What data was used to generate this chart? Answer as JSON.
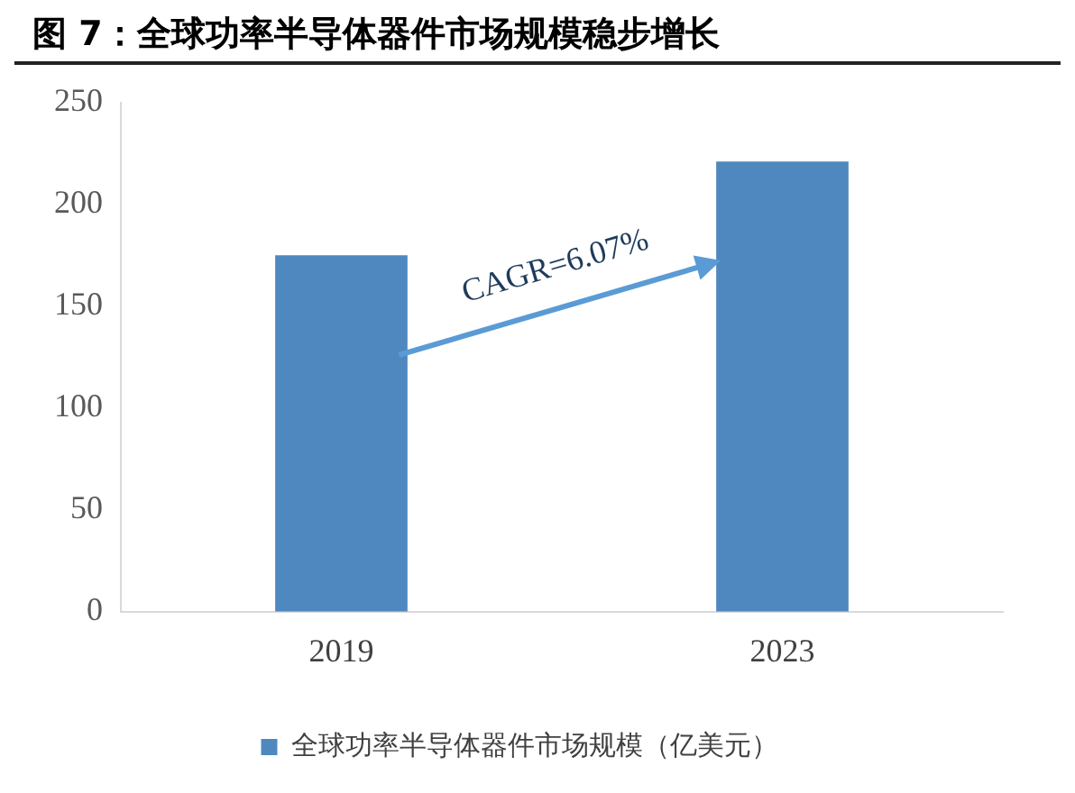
{
  "chart_data": {
    "type": "bar",
    "title": "图 7：全球功率半导体器件市场规模稳步增长",
    "categories": [
      "2019",
      "2023"
    ],
    "series": [
      {
        "name": "全球功率半导体器件市场规模（亿美元）",
        "color": "#4f88bf",
        "values": [
          175,
          221
        ]
      }
    ],
    "ylim": [
      0,
      250
    ],
    "yticks": [
      0,
      50,
      100,
      150,
      200,
      250
    ],
    "grid": false,
    "legend": "bottom",
    "annotations": [
      "CAGR=6.07%"
    ]
  }
}
